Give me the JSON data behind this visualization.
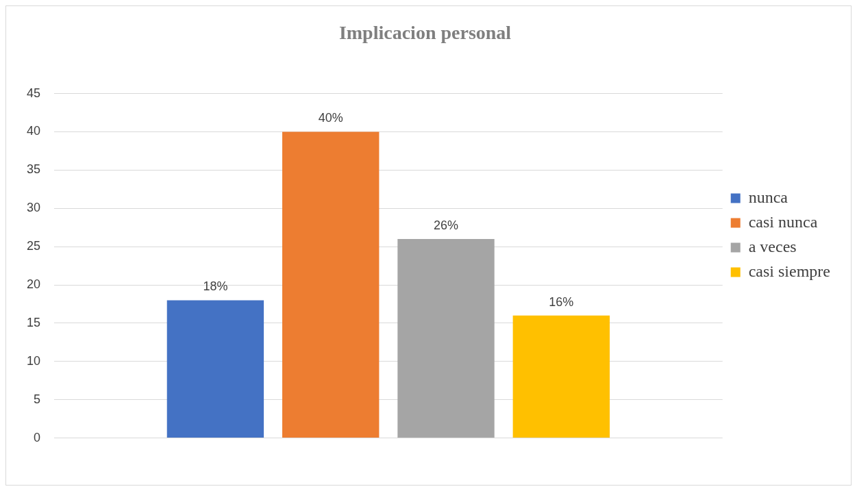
{
  "chart_data": {
    "type": "bar",
    "title": "Implicacion personal",
    "categories": [
      null
    ],
    "series": [
      {
        "name": "nunca",
        "color": "#4472c4",
        "values": [
          18
        ],
        "value_labels": [
          "18%"
        ]
      },
      {
        "name": "casi nunca",
        "color": "#ed7d31",
        "values": [
          40
        ],
        "value_labels": [
          "40%"
        ]
      },
      {
        "name": "a veces",
        "color": "#a5a5a5",
        "values": [
          26
        ],
        "value_labels": [
          "26%"
        ]
      },
      {
        "name": "casi siempre",
        "color": "#ffc000",
        "values": [
          16
        ],
        "value_labels": [
          "16%"
        ]
      }
    ],
    "ylim": [
      0,
      45
    ],
    "yticks": [
      0,
      5,
      10,
      15,
      20,
      25,
      30,
      35,
      40,
      45
    ],
    "grid": "y",
    "legend": "right"
  }
}
